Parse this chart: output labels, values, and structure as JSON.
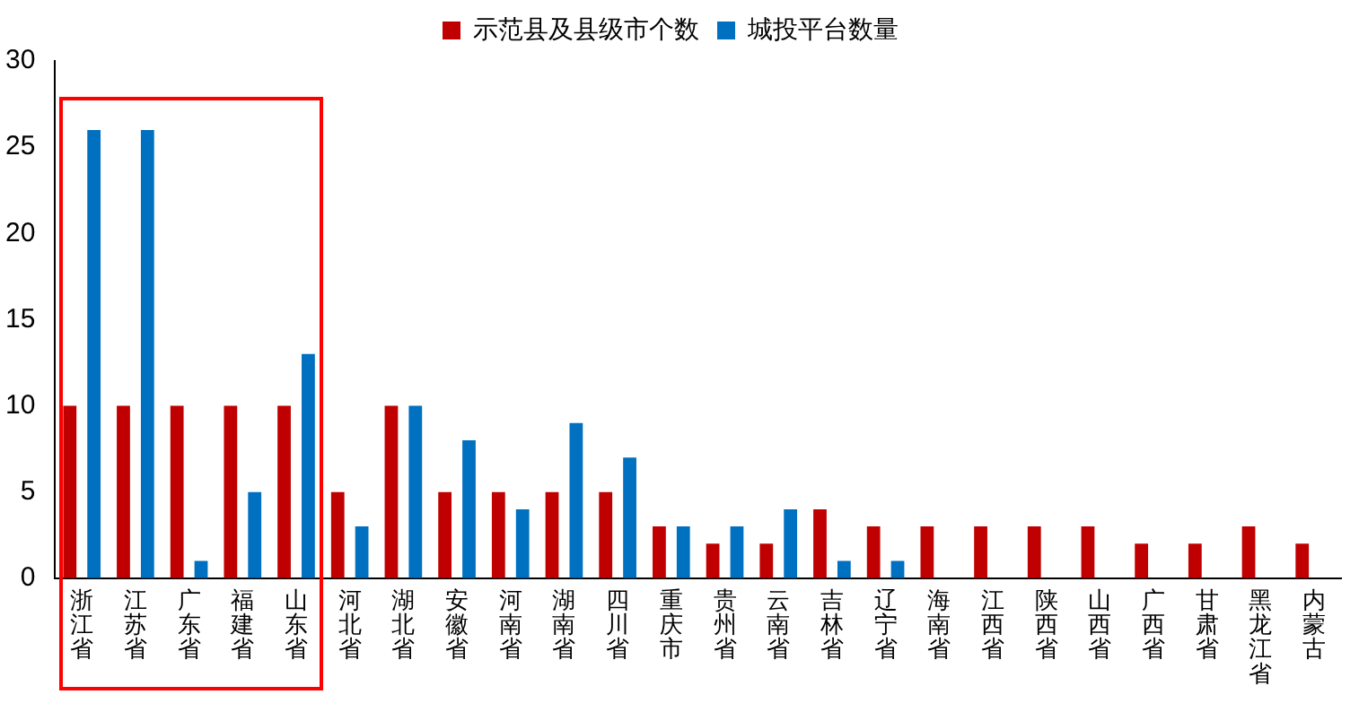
{
  "chart_data": {
    "type": "bar",
    "categories": [
      "浙江省",
      "江苏省",
      "广东省",
      "福建省",
      "山东省",
      "河北省",
      "湖北省",
      "安徽省",
      "河南省",
      "湖南省",
      "四川省",
      "重庆市",
      "贵州省",
      "云南省",
      "吉林省",
      "辽宁省",
      "海南省",
      "江西省",
      "陕西省",
      "山西省",
      "广西省",
      "甘肃省",
      "黑龙江省",
      "内蒙古"
    ],
    "series": [
      {
        "name": "示范县及县级市个数",
        "color": "#c00000",
        "values": [
          10,
          10,
          10,
          10,
          10,
          5,
          10,
          5,
          5,
          5,
          5,
          3,
          2,
          2,
          4,
          3,
          3,
          3,
          3,
          3,
          2,
          2,
          3,
          2
        ]
      },
      {
        "name": "城投平台数量",
        "color": "#0070c0",
        "values": [
          26,
          26,
          1,
          5,
          13,
          3,
          10,
          8,
          4,
          9,
          7,
          3,
          3,
          4,
          1,
          1,
          0,
          0,
          0,
          0,
          0,
          0,
          0,
          0
        ]
      }
    ],
    "ylim": [
      0,
      30
    ],
    "yticks": [
      0,
      5,
      10,
      15,
      20,
      25,
      30
    ],
    "grid": false,
    "legend": "top"
  }
}
